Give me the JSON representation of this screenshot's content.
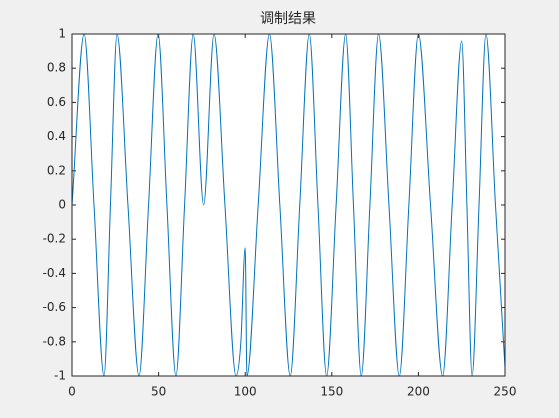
{
  "chart_data": {
    "type": "line",
    "title": "调制结果",
    "x": [
      0,
      7,
      12.7,
      18.5,
      22.2,
      26,
      32.3,
      38.7,
      44.2,
      49.7,
      54.8,
      60,
      65,
      70,
      76,
      82,
      88.3,
      94.7,
      97.5,
      100,
      101,
      107.5,
      114,
      120,
      126,
      131.5,
      137,
      142,
      147,
      152.5,
      158,
      162.5,
      167,
      172,
      177,
      183,
      189,
      194.5,
      200,
      207,
      214,
      219.5,
      225,
      228,
      231,
      235,
      239,
      244.5,
      250
    ],
    "series": [
      {
        "color": "#0072bd",
        "values": [
          0,
          1,
          0,
          -1,
          0,
          1,
          0,
          -1,
          0,
          1,
          0,
          -1,
          0,
          1,
          0,
          1,
          0,
          -1,
          -0.8,
          -0.25,
          -1,
          0,
          1,
          0,
          -1,
          0,
          1,
          0,
          -1,
          0,
          1,
          0,
          -1,
          0,
          1,
          0,
          -1,
          0,
          1,
          0,
          -1,
          0,
          0.96,
          0,
          -1,
          0,
          1,
          0,
          -0.95
        ]
      }
    ],
    "xlim": [
      0,
      250
    ],
    "ylim": [
      -1,
      1
    ],
    "xticks": [
      0,
      50,
      100,
      150,
      200,
      250
    ],
    "yticks": [
      -1,
      -0.8,
      -0.6,
      -0.4,
      -0.2,
      0,
      0.2,
      0.4,
      0.6,
      0.8,
      1
    ]
  }
}
